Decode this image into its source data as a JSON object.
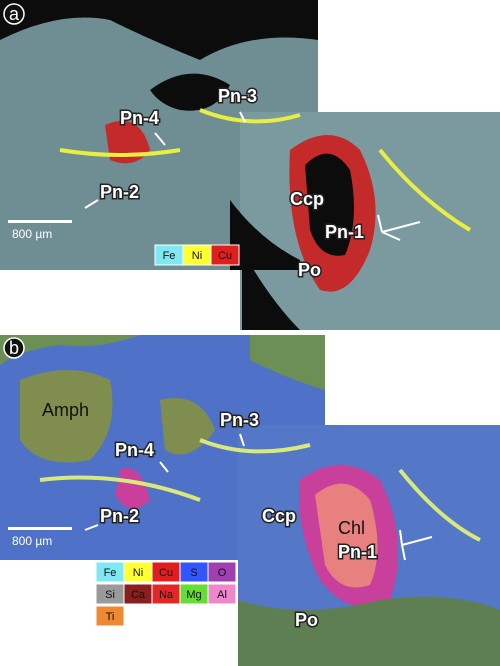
{
  "panels": [
    {
      "label": "a",
      "scale_bar": "800 µm",
      "annotations": [
        "Pn-4",
        "Pn-3",
        "Pn-2",
        "Ccp",
        "Pn-1",
        "Po"
      ],
      "legend": [
        [
          {
            "text": "Fe",
            "color": "#7fe8f2"
          },
          {
            "text": "Ni",
            "color": "#ffff33"
          },
          {
            "text": "Cu",
            "color": "#e01e1e"
          }
        ]
      ]
    },
    {
      "label": "b",
      "scale_bar": "800 µm",
      "annotations": [
        "Amph",
        "Pn-3",
        "Pn-4",
        "Pn-2",
        "Ccp",
        "Chl",
        "Pn-1",
        "Po"
      ],
      "legend": [
        [
          {
            "text": "Fe",
            "color": "#7fe8f2"
          },
          {
            "text": "Ni",
            "color": "#ffff33"
          },
          {
            "text": "Cu",
            "color": "#e01e1e"
          },
          {
            "text": "S",
            "color": "#3355ff"
          },
          {
            "text": "O",
            "color": "#a040b0"
          }
        ],
        [
          {
            "text": "Si",
            "color": "#9a9a9a"
          },
          {
            "text": "Ca",
            "color": "#8a1e1e"
          },
          {
            "text": "Na",
            "color": "#e02828"
          },
          {
            "text": "Mg",
            "color": "#66dd33"
          },
          {
            "text": "Al",
            "color": "#ee88cc"
          }
        ],
        [
          {
            "text": "Ti",
            "color": "#ee8833"
          }
        ]
      ]
    }
  ]
}
